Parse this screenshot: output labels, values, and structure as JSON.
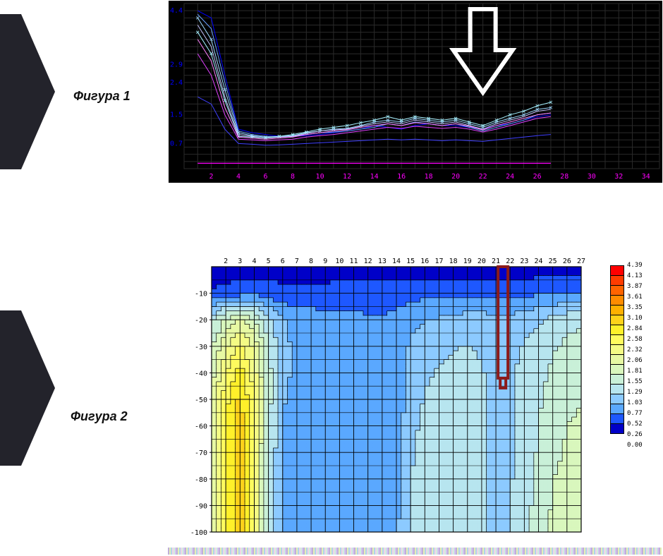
{
  "labels": {
    "fig1": "Фигура 1",
    "fig2": "Фигура 2"
  },
  "decor_arrow_color": "#23232b",
  "fig1": {
    "type": "line",
    "background_color": "#000000",
    "grid_color": "#2a2a2a",
    "border_color": "#ffffff",
    "xlim": [
      0,
      35
    ],
    "ylim": [
      0,
      4.6
    ],
    "xtick_step": 2,
    "xtick_labels": [
      2,
      4,
      6,
      8,
      10,
      12,
      14,
      16,
      18,
      20,
      22,
      24,
      26,
      28,
      30,
      32,
      34
    ],
    "xtick_color": "#ff00ff",
    "ytick_color": "#0000ff",
    "ytick_labels": [
      0.7,
      1.5,
      2.4,
      2.9,
      4.4
    ],
    "axis_fontsize": 10,
    "lines": [
      {
        "color": "#0000ff",
        "width": 1.0,
        "y": [
          4.4,
          4.2,
          2.6,
          1.1,
          1.0,
          0.95,
          0.9,
          0.9,
          0.92,
          0.95,
          1.0,
          1.05,
          1.1,
          1.2,
          1.15,
          1.1,
          1.2,
          1.25,
          1.2,
          1.2,
          1.15,
          1.1,
          1.2,
          1.25,
          1.35,
          1.45,
          1.5
        ]
      },
      {
        "color": "#6aa0ff",
        "width": 1.0,
        "y": [
          4.3,
          3.9,
          2.4,
          1.05,
          0.95,
          0.9,
          0.88,
          0.9,
          0.95,
          1.0,
          1.02,
          1.05,
          1.1,
          1.15,
          1.25,
          1.2,
          1.3,
          1.25,
          1.2,
          1.25,
          1.15,
          1.05,
          1.15,
          1.25,
          1.35,
          1.5,
          1.55
        ]
      },
      {
        "color": "#9dd8ff",
        "width": 1.0,
        "y": [
          4.2,
          3.6,
          2.2,
          1.0,
          0.92,
          0.88,
          0.9,
          0.92,
          1.0,
          1.05,
          1.1,
          1.12,
          1.2,
          1.3,
          1.35,
          1.3,
          1.4,
          1.35,
          1.3,
          1.35,
          1.25,
          1.15,
          1.3,
          1.4,
          1.5,
          1.65,
          1.7
        ]
      },
      {
        "color": "#c4c4ff",
        "width": 1.0,
        "y": [
          4.0,
          3.4,
          2.0,
          0.95,
          0.9,
          0.85,
          0.88,
          0.9,
          0.98,
          1.05,
          1.08,
          1.1,
          1.18,
          1.25,
          1.3,
          1.25,
          1.35,
          1.3,
          1.25,
          1.3,
          1.2,
          1.1,
          1.25,
          1.35,
          1.45,
          1.6,
          1.65
        ]
      },
      {
        "color": "#a4f0ff",
        "width": 1.0,
        "y": [
          3.8,
          3.2,
          1.9,
          0.9,
          0.88,
          0.85,
          0.9,
          0.95,
          1.02,
          1.1,
          1.15,
          1.2,
          1.28,
          1.35,
          1.45,
          1.35,
          1.45,
          1.4,
          1.35,
          1.4,
          1.3,
          1.2,
          1.35,
          1.5,
          1.6,
          1.75,
          1.85
        ]
      },
      {
        "color": "#ff80ff",
        "width": 1.0,
        "y": [
          3.6,
          3.0,
          1.7,
          0.88,
          0.85,
          0.82,
          0.85,
          0.88,
          0.95,
          1.0,
          1.05,
          1.08,
          1.15,
          1.2,
          1.25,
          1.2,
          1.28,
          1.25,
          1.2,
          1.25,
          1.18,
          1.08,
          1.2,
          1.3,
          1.4,
          1.5,
          1.55
        ]
      },
      {
        "color": "#e040ff",
        "width": 1.0,
        "y": [
          3.2,
          2.6,
          1.5,
          0.82,
          0.8,
          0.78,
          0.8,
          0.82,
          0.88,
          0.92,
          0.95,
          1.0,
          1.05,
          1.1,
          1.15,
          1.12,
          1.18,
          1.15,
          1.12,
          1.15,
          1.1,
          1.02,
          1.1,
          1.2,
          1.3,
          1.4,
          1.45
        ]
      },
      {
        "color": "#4040ff",
        "width": 1.0,
        "y": [
          2.0,
          1.8,
          1.1,
          0.7,
          0.68,
          0.65,
          0.66,
          0.68,
          0.7,
          0.72,
          0.74,
          0.76,
          0.78,
          0.8,
          0.82,
          0.8,
          0.82,
          0.8,
          0.78,
          0.8,
          0.78,
          0.76,
          0.8,
          0.84,
          0.88,
          0.92,
          0.95
        ]
      },
      {
        "color": "#ff00ff",
        "width": 1.2,
        "y": [
          0.15,
          0.15,
          0.15,
          0.15,
          0.15,
          0.15,
          0.15,
          0.15,
          0.15,
          0.15,
          0.15,
          0.15,
          0.15,
          0.15,
          0.15,
          0.15,
          0.15,
          0.15,
          0.15,
          0.15,
          0.15,
          0.15,
          0.15,
          0.15,
          0.15,
          0.15,
          0.15
        ]
      }
    ],
    "line_xstart": 1,
    "arrow_marker": {
      "x": 22,
      "color": "#ffffff",
      "stroke_width": 6
    }
  },
  "fig2": {
    "type": "heatmap",
    "background_color": "#ffffff",
    "grid_color": "#000000",
    "border_color": "#000000",
    "xlim": [
      1,
      27
    ],
    "ylim": [
      -100,
      0
    ],
    "xtick_labels": [
      2,
      3,
      4,
      5,
      6,
      7,
      8,
      9,
      10,
      11,
      12,
      13,
      14,
      15,
      16,
      17,
      18,
      19,
      20,
      21,
      22,
      23,
      24,
      25,
      26,
      27
    ],
    "ytick_labels": [
      -10,
      -20,
      -30,
      -40,
      -50,
      -60,
      -70,
      -80,
      -90,
      -100
    ],
    "ytick_step": 10,
    "axis_fontsize": 10,
    "marker": {
      "x": 21.5,
      "y_from": 0,
      "y_to": -42,
      "color": "#8b1a1a",
      "width": 4
    },
    "colorscale": {
      "min": 0.0,
      "max": 4.39,
      "boundaries": [
        0.0,
        0.26,
        0.52,
        0.77,
        1.03,
        1.29,
        1.55,
        1.81,
        2.06,
        2.32,
        2.58,
        2.84,
        3.1,
        3.35,
        3.61,
        3.87,
        4.13,
        4.39
      ],
      "colors": [
        "#0000c8",
        "#1e58ff",
        "#5aa8ff",
        "#8ccaff",
        "#b7e5ef",
        "#c9f0d8",
        "#d9f7bd",
        "#e7f9a3",
        "#f4fb85",
        "#fffb5e",
        "#fff02a",
        "#ffd21a",
        "#ffb000",
        "#ff8c00",
        "#ff6400",
        "#ff3c00",
        "#ff0000"
      ]
    },
    "cells": {
      "x": [
        1,
        2,
        3,
        4,
        5,
        6,
        7,
        8,
        9,
        10,
        11,
        12,
        13,
        14,
        15,
        16,
        17,
        18,
        19,
        20,
        21,
        22,
        23,
        24,
        25,
        26,
        27
      ],
      "y": [
        0,
        -10,
        -20,
        -30,
        -40,
        -50,
        -60,
        -70,
        -80,
        -90,
        -100
      ],
      "z": [
        [
          0.1,
          0.1,
          0.1,
          0.1,
          0.1,
          0.1,
          0.1,
          0.1,
          0.1,
          0.1,
          0.1,
          0.1,
          0.1,
          0.1,
          0.1,
          0.1,
          0.1,
          0.1,
          0.1,
          0.1,
          0.1,
          0.1,
          0.1,
          0.1,
          0.1,
          0.1,
          0.1
        ],
        [
          0.3,
          0.35,
          0.4,
          0.45,
          0.4,
          0.35,
          0.35,
          0.35,
          0.35,
          0.4,
          0.4,
          0.4,
          0.4,
          0.4,
          0.45,
          0.45,
          0.45,
          0.45,
          0.45,
          0.45,
          0.45,
          0.45,
          0.45,
          0.5,
          0.5,
          0.55,
          0.55
        ],
        [
          1.2,
          1.6,
          1.9,
          1.6,
          1.1,
          0.8,
          0.7,
          0.65,
          0.6,
          0.6,
          0.6,
          0.55,
          0.55,
          0.6,
          0.7,
          0.75,
          0.8,
          0.85,
          0.9,
          0.9,
          0.8,
          0.85,
          0.95,
          1.0,
          1.1,
          1.2,
          1.25
        ],
        [
          1.5,
          2.0,
          2.4,
          2.0,
          1.3,
          0.85,
          0.7,
          0.65,
          0.6,
          0.58,
          0.58,
          0.55,
          0.55,
          0.6,
          0.8,
          0.9,
          0.95,
          1.0,
          1.05,
          1.0,
          0.9,
          0.95,
          1.05,
          1.15,
          1.25,
          1.35,
          1.4
        ],
        [
          1.7,
          2.3,
          2.7,
          2.2,
          1.4,
          0.85,
          0.7,
          0.6,
          0.58,
          0.55,
          0.55,
          0.55,
          0.55,
          0.6,
          0.85,
          1.0,
          1.05,
          1.1,
          1.1,
          1.05,
          0.95,
          1.0,
          1.1,
          1.2,
          1.35,
          1.45,
          1.5
        ],
        [
          1.8,
          2.5,
          2.9,
          2.3,
          1.4,
          0.8,
          0.65,
          0.58,
          0.55,
          0.55,
          0.55,
          0.55,
          0.55,
          0.6,
          0.9,
          1.05,
          1.1,
          1.15,
          1.1,
          1.05,
          0.95,
          1.0,
          1.1,
          1.25,
          1.4,
          1.5,
          1.55
        ],
        [
          1.85,
          2.6,
          3.0,
          2.3,
          1.35,
          0.78,
          0.62,
          0.58,
          0.55,
          0.55,
          0.55,
          0.55,
          0.55,
          0.62,
          0.95,
          1.1,
          1.15,
          1.18,
          1.12,
          1.05,
          0.95,
          1.0,
          1.12,
          1.3,
          1.45,
          1.55,
          1.58
        ],
        [
          1.85,
          2.65,
          3.0,
          2.3,
          1.3,
          0.75,
          0.6,
          0.58,
          0.55,
          0.55,
          0.55,
          0.55,
          0.55,
          0.65,
          1.0,
          1.12,
          1.18,
          1.2,
          1.12,
          1.05,
          0.95,
          1.0,
          1.15,
          1.32,
          1.5,
          1.58,
          1.6
        ],
        [
          1.85,
          2.65,
          3.0,
          2.25,
          1.28,
          0.72,
          0.6,
          0.58,
          0.55,
          0.55,
          0.55,
          0.55,
          0.55,
          0.68,
          1.02,
          1.15,
          1.2,
          1.2,
          1.12,
          1.05,
          0.95,
          1.0,
          1.18,
          1.35,
          1.55,
          1.6,
          1.62
        ],
        [
          1.85,
          2.65,
          3.0,
          2.25,
          1.25,
          0.7,
          0.6,
          0.58,
          0.55,
          0.55,
          0.55,
          0.55,
          0.55,
          0.7,
          1.05,
          1.18,
          1.22,
          1.2,
          1.12,
          1.05,
          0.95,
          1.0,
          1.2,
          1.38,
          1.58,
          1.62,
          1.65
        ],
        [
          1.85,
          2.65,
          3.0,
          2.25,
          1.25,
          0.7,
          0.6,
          0.58,
          0.55,
          0.55,
          0.55,
          0.55,
          0.55,
          0.72,
          1.08,
          1.2,
          1.22,
          1.2,
          1.12,
          1.05,
          0.95,
          1.0,
          1.22,
          1.4,
          1.6,
          1.65,
          1.68
        ]
      ]
    }
  }
}
